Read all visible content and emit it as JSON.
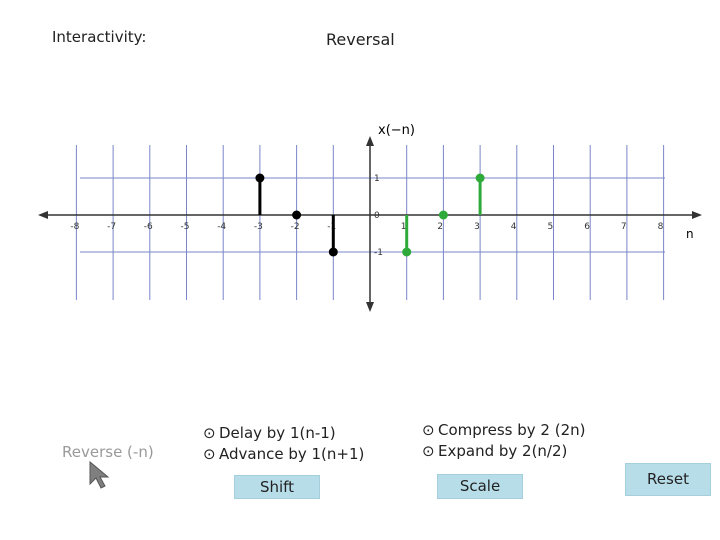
{
  "header": {
    "interactivity_label": "Interactivity:",
    "title": "Reversal"
  },
  "plot": {
    "function_label": "x(−n)",
    "x_axis_label": "n",
    "x_ticks": [
      -8,
      -7,
      -6,
      -5,
      -4,
      -3,
      -2,
      -1,
      0,
      1,
      2,
      3,
      4,
      5,
      6,
      7,
      8
    ],
    "y_ticks": [
      1,
      0,
      -1
    ],
    "colors": {
      "original": "#000000",
      "reversed": "#2eaa3a",
      "grid": "#7a86c9",
      "axis": "#333333"
    },
    "stems": {
      "original": [
        {
          "n": -3,
          "v": 1
        },
        {
          "n": -2,
          "v": 0
        },
        {
          "n": -1,
          "v": -1
        }
      ],
      "reversed": [
        {
          "n": 1,
          "v": -1
        },
        {
          "n": 2,
          "v": 0
        },
        {
          "n": 3,
          "v": 1
        }
      ]
    }
  },
  "controls": {
    "reverse_label": "Reverse (-n)",
    "shift_options": [
      "Delay by 1(n-1)",
      "Advance by 1(n+1)"
    ],
    "shift_button": "Shift",
    "scale_options": [
      "Compress by 2 (2n)",
      "Expand by 2(n/2)"
    ],
    "scale_button": "Scale",
    "reset_button": "Reset",
    "bullet_icon": "⊙"
  }
}
